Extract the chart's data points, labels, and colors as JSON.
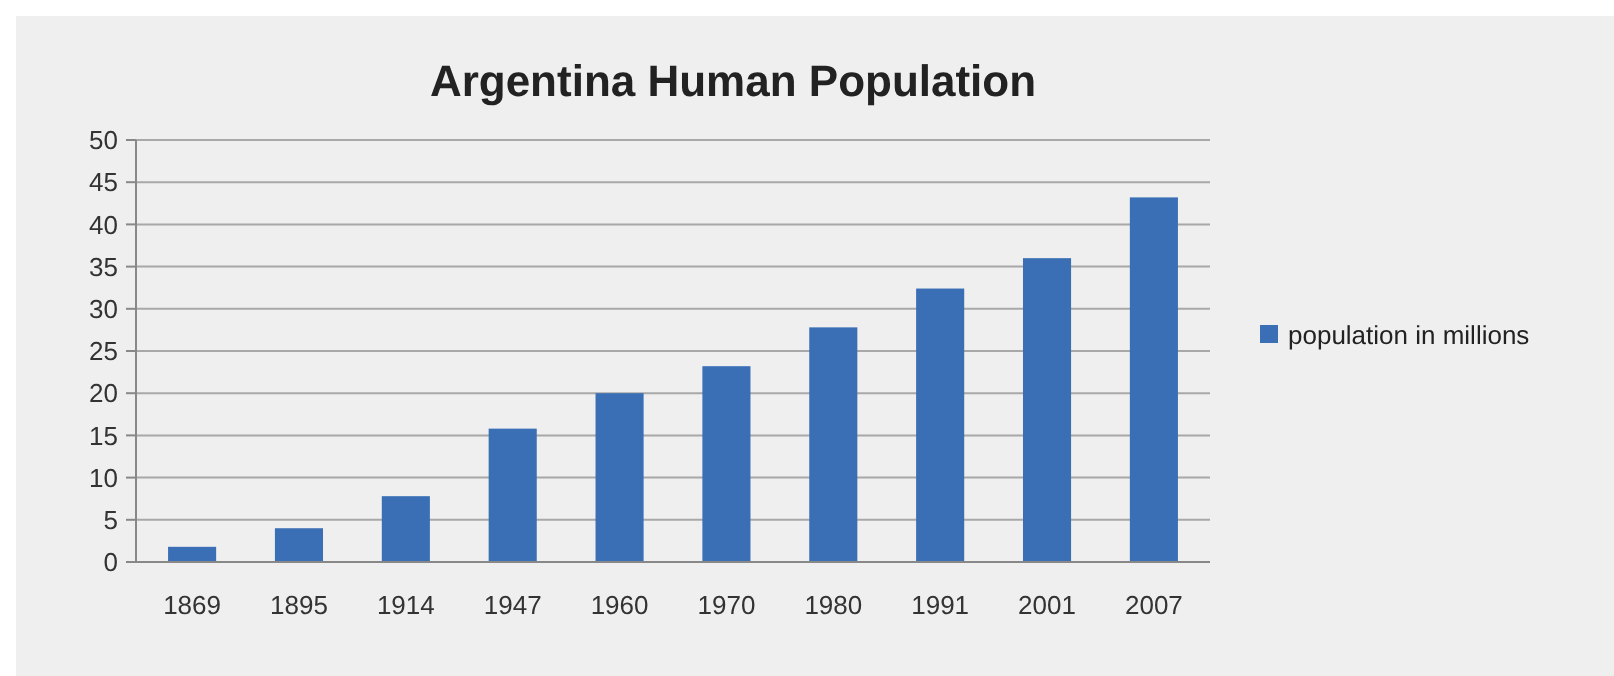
{
  "chart_data": {
    "type": "bar",
    "title": "Argentina Human Population",
    "categories": [
      "1869",
      "1895",
      "1914",
      "1947",
      "1960",
      "1970",
      "1980",
      "1991",
      "2001",
      "2007"
    ],
    "series": [
      {
        "name": "population in millions",
        "color": "#3a6fb5",
        "values": [
          1.8,
          4.0,
          7.8,
          15.8,
          20.0,
          23.2,
          27.8,
          32.4,
          36.0,
          43.2
        ]
      }
    ],
    "ylim": [
      0,
      50
    ],
    "yticks": [
      0,
      5,
      10,
      15,
      20,
      25,
      30,
      35,
      40,
      45,
      50
    ],
    "grid": "y",
    "legend": "right"
  }
}
